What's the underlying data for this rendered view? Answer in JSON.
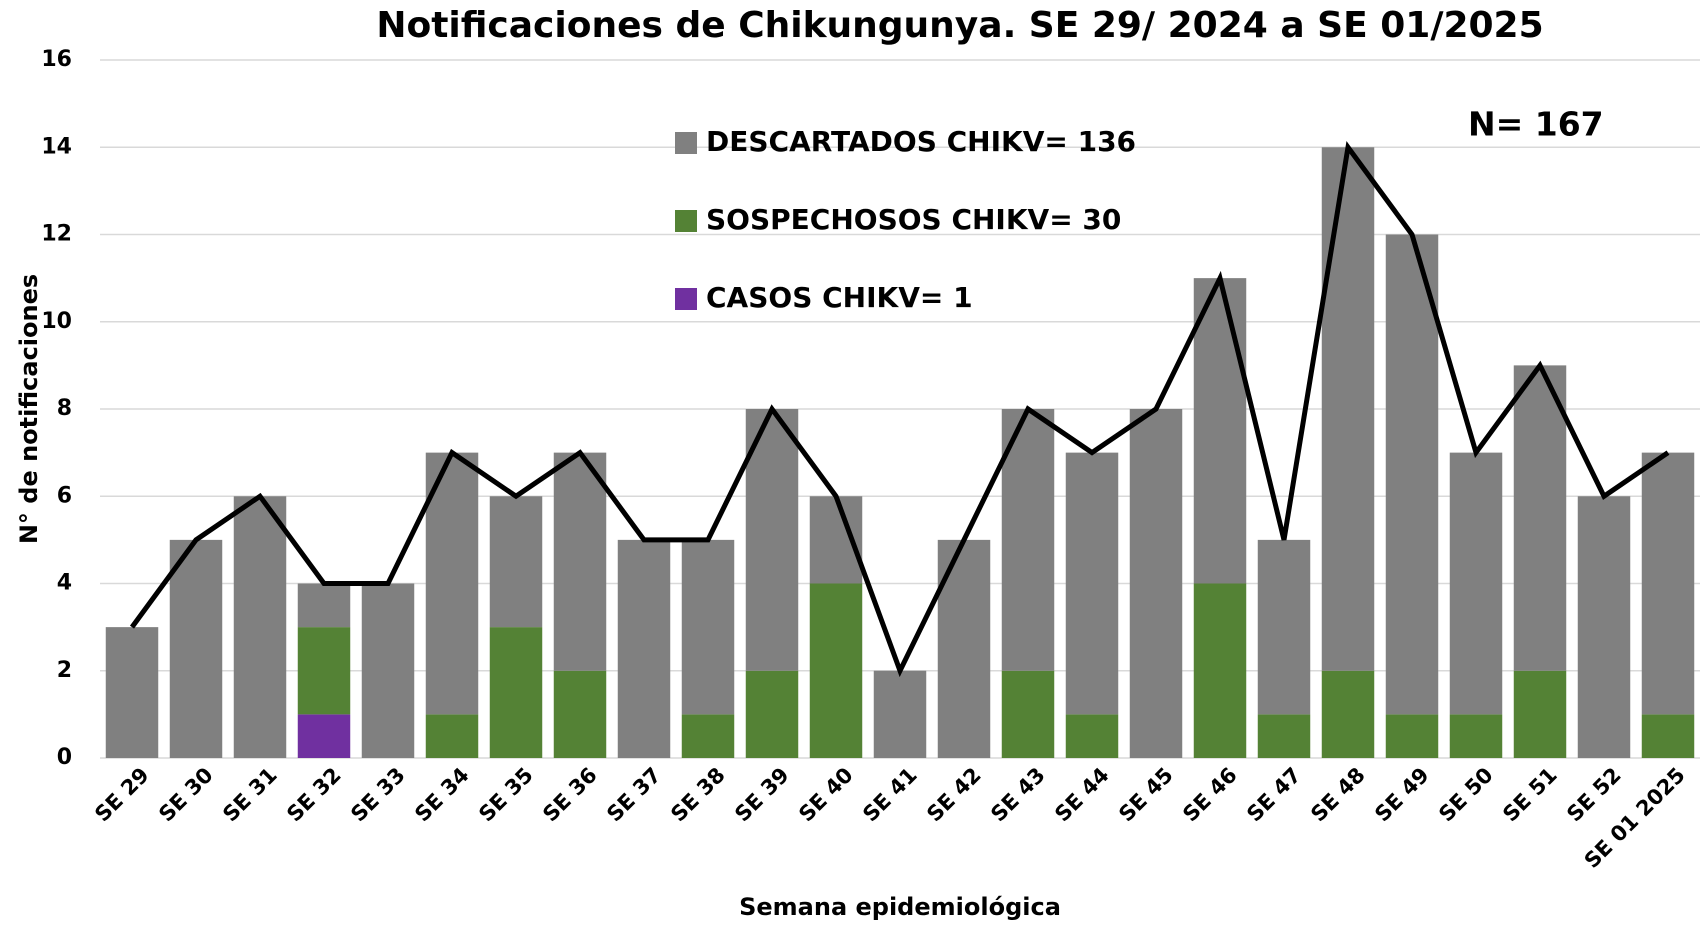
{
  "chart_data": {
    "type": "stacked_bar_line",
    "title": "Notificaciones de Chikungunya. SE 29/ 2024 a SE 01/2025",
    "x_label": "Semana epidemiológica",
    "y_label": "N° de notificaciones",
    "annotation": "N= 167",
    "categories": [
      "SE 29",
      "SE 30",
      "SE 31",
      "SE 32",
      "SE 33",
      "SE 34",
      "SE 35",
      "SE 36",
      "SE 37",
      "SE 38",
      "SE 39",
      "SE 40",
      "SE 41",
      "SE 42",
      "SE 43",
      "SE 44",
      "SE 45",
      "SE 46",
      "SE 47",
      "SE 48",
      "SE 49",
      "SE 50",
      "SE 51",
      "SE 52",
      "SE 01 2025"
    ],
    "series": [
      {
        "name": "DESCARTADOS CHIKV= 136",
        "color": "#808080",
        "values": [
          3,
          5,
          6,
          1,
          4,
          6,
          3,
          5,
          5,
          4,
          6,
          2,
          2,
          5,
          6,
          6,
          8,
          7,
          4,
          12,
          11,
          6,
          7,
          6,
          6
        ]
      },
      {
        "name": "SOSPECHOSOS CHIKV= 30",
        "color": "#548235",
        "values": [
          0,
          0,
          0,
          2,
          0,
          1,
          3,
          2,
          0,
          1,
          2,
          4,
          0,
          0,
          2,
          1,
          0,
          4,
          1,
          2,
          1,
          1,
          2,
          0,
          1
        ]
      },
      {
        "name": "CASOS CHIKV= 1",
        "color": "#7030a0",
        "values": [
          0,
          0,
          0,
          1,
          0,
          0,
          0,
          0,
          0,
          0,
          0,
          0,
          0,
          0,
          0,
          0,
          0,
          0,
          0,
          0,
          0,
          0,
          0,
          0,
          0
        ]
      }
    ],
    "line": {
      "color": "#000000",
      "values": [
        3,
        5,
        6,
        4,
        4,
        7,
        6,
        7,
        5,
        5,
        8,
        6,
        2,
        5,
        8,
        7,
        8,
        11,
        5,
        14,
        12,
        7,
        9,
        6,
        7
      ]
    },
    "ylim": [
      0,
      16
    ],
    "yticks": [
      0,
      2,
      4,
      6,
      8,
      10,
      12,
      14,
      16
    ],
    "grid": true
  }
}
